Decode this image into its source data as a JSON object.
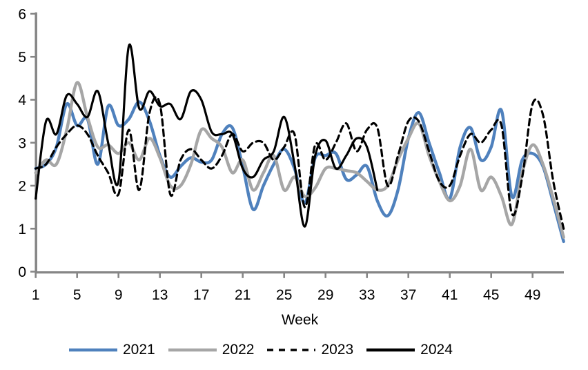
{
  "chart_data": {
    "type": "line",
    "title": "",
    "xlabel": "Week",
    "ylabel": "",
    "xlim": [
      1,
      52
    ],
    "ylim": [
      0,
      6
    ],
    "x_ticks": [
      1,
      5,
      9,
      13,
      17,
      21,
      25,
      29,
      33,
      37,
      41,
      45,
      49
    ],
    "y_ticks": [
      0,
      1,
      2,
      3,
      4,
      5,
      6
    ],
    "grid": "off",
    "legend_position": "bottom",
    "axis_color": "#868686",
    "text_color": "#000000",
    "series": [
      {
        "name": "2021",
        "color": "#4F81BD",
        "dashed": false,
        "stroke_width": 4.4,
        "start_week": 1,
        "values": [
          2.4,
          2.5,
          2.9,
          3.9,
          3.4,
          3.55,
          2.5,
          3.85,
          3.4,
          3.55,
          3.95,
          3.5,
          2.7,
          2.2,
          2.45,
          2.65,
          2.55,
          2.6,
          3.2,
          3.35,
          2.45,
          1.45,
          2.0,
          2.5,
          2.85,
          2.4,
          1.6,
          2.65,
          2.7,
          2.75,
          2.15,
          2.25,
          2.45,
          1.65,
          1.3,
          1.9,
          3.1,
          3.7,
          3.0,
          2.3,
          1.7,
          2.9,
          3.35,
          2.6,
          2.9,
          3.75,
          1.75,
          2.6,
          2.75,
          2.45,
          1.6,
          0.7
        ]
      },
      {
        "name": "2022",
        "color": "#A6A6A6",
        "dashed": false,
        "stroke_width": 4.4,
        "start_week": 1,
        "values": [
          2.3,
          2.6,
          2.5,
          3.3,
          4.4,
          3.6,
          2.9,
          2.95,
          2.75,
          3.0,
          2.6,
          3.1,
          2.65,
          2.0,
          2.0,
          2.5,
          3.3,
          3.1,
          2.9,
          2.3,
          2.6,
          1.9,
          2.3,
          2.7,
          1.9,
          2.2,
          1.75,
          1.95,
          2.4,
          2.4,
          2.35,
          2.3,
          2.1,
          1.9,
          2.0,
          2.6,
          3.1,
          3.45,
          2.7,
          2.1,
          1.65,
          2.0,
          2.85,
          1.9,
          2.2,
          1.75,
          1.1,
          2.3,
          2.95,
          2.5,
          1.7,
          0.8
        ]
      },
      {
        "name": "2023",
        "color": "#000000",
        "dashed": true,
        "dash_pattern": "9 6",
        "stroke_width": 3.2,
        "start_week": 1,
        "values": [
          2.4,
          2.5,
          2.9,
          3.2,
          3.4,
          3.2,
          2.7,
          2.3,
          1.8,
          3.3,
          1.9,
          3.7,
          3.9,
          1.8,
          2.6,
          2.85,
          2.6,
          2.4,
          2.7,
          3.2,
          2.8,
          3.0,
          3.0,
          2.6,
          2.9,
          3.2,
          1.5,
          2.95,
          2.6,
          3.0,
          3.45,
          2.8,
          3.3,
          3.35,
          2.0,
          2.7,
          3.5,
          3.5,
          2.8,
          2.1,
          2.0,
          2.7,
          3.2,
          3.0,
          3.3,
          3.4,
          1.35,
          2.2,
          3.9,
          3.65,
          2.1,
          1.0
        ]
      },
      {
        "name": "2024",
        "color": "#000000",
        "dashed": false,
        "stroke_width": 3.2,
        "start_week": 1,
        "values": [
          1.7,
          3.5,
          3.2,
          4.1,
          3.9,
          3.6,
          4.2,
          3.0,
          2.1,
          5.25,
          3.8,
          4.2,
          3.85,
          3.9,
          3.55,
          4.2,
          4.0,
          3.25,
          3.2,
          3.2,
          2.4,
          2.2,
          2.6,
          2.8,
          3.6,
          2.5,
          1.05,
          2.7,
          3.05,
          2.4,
          2.7,
          3.1,
          2.9,
          1.9
        ]
      }
    ]
  }
}
